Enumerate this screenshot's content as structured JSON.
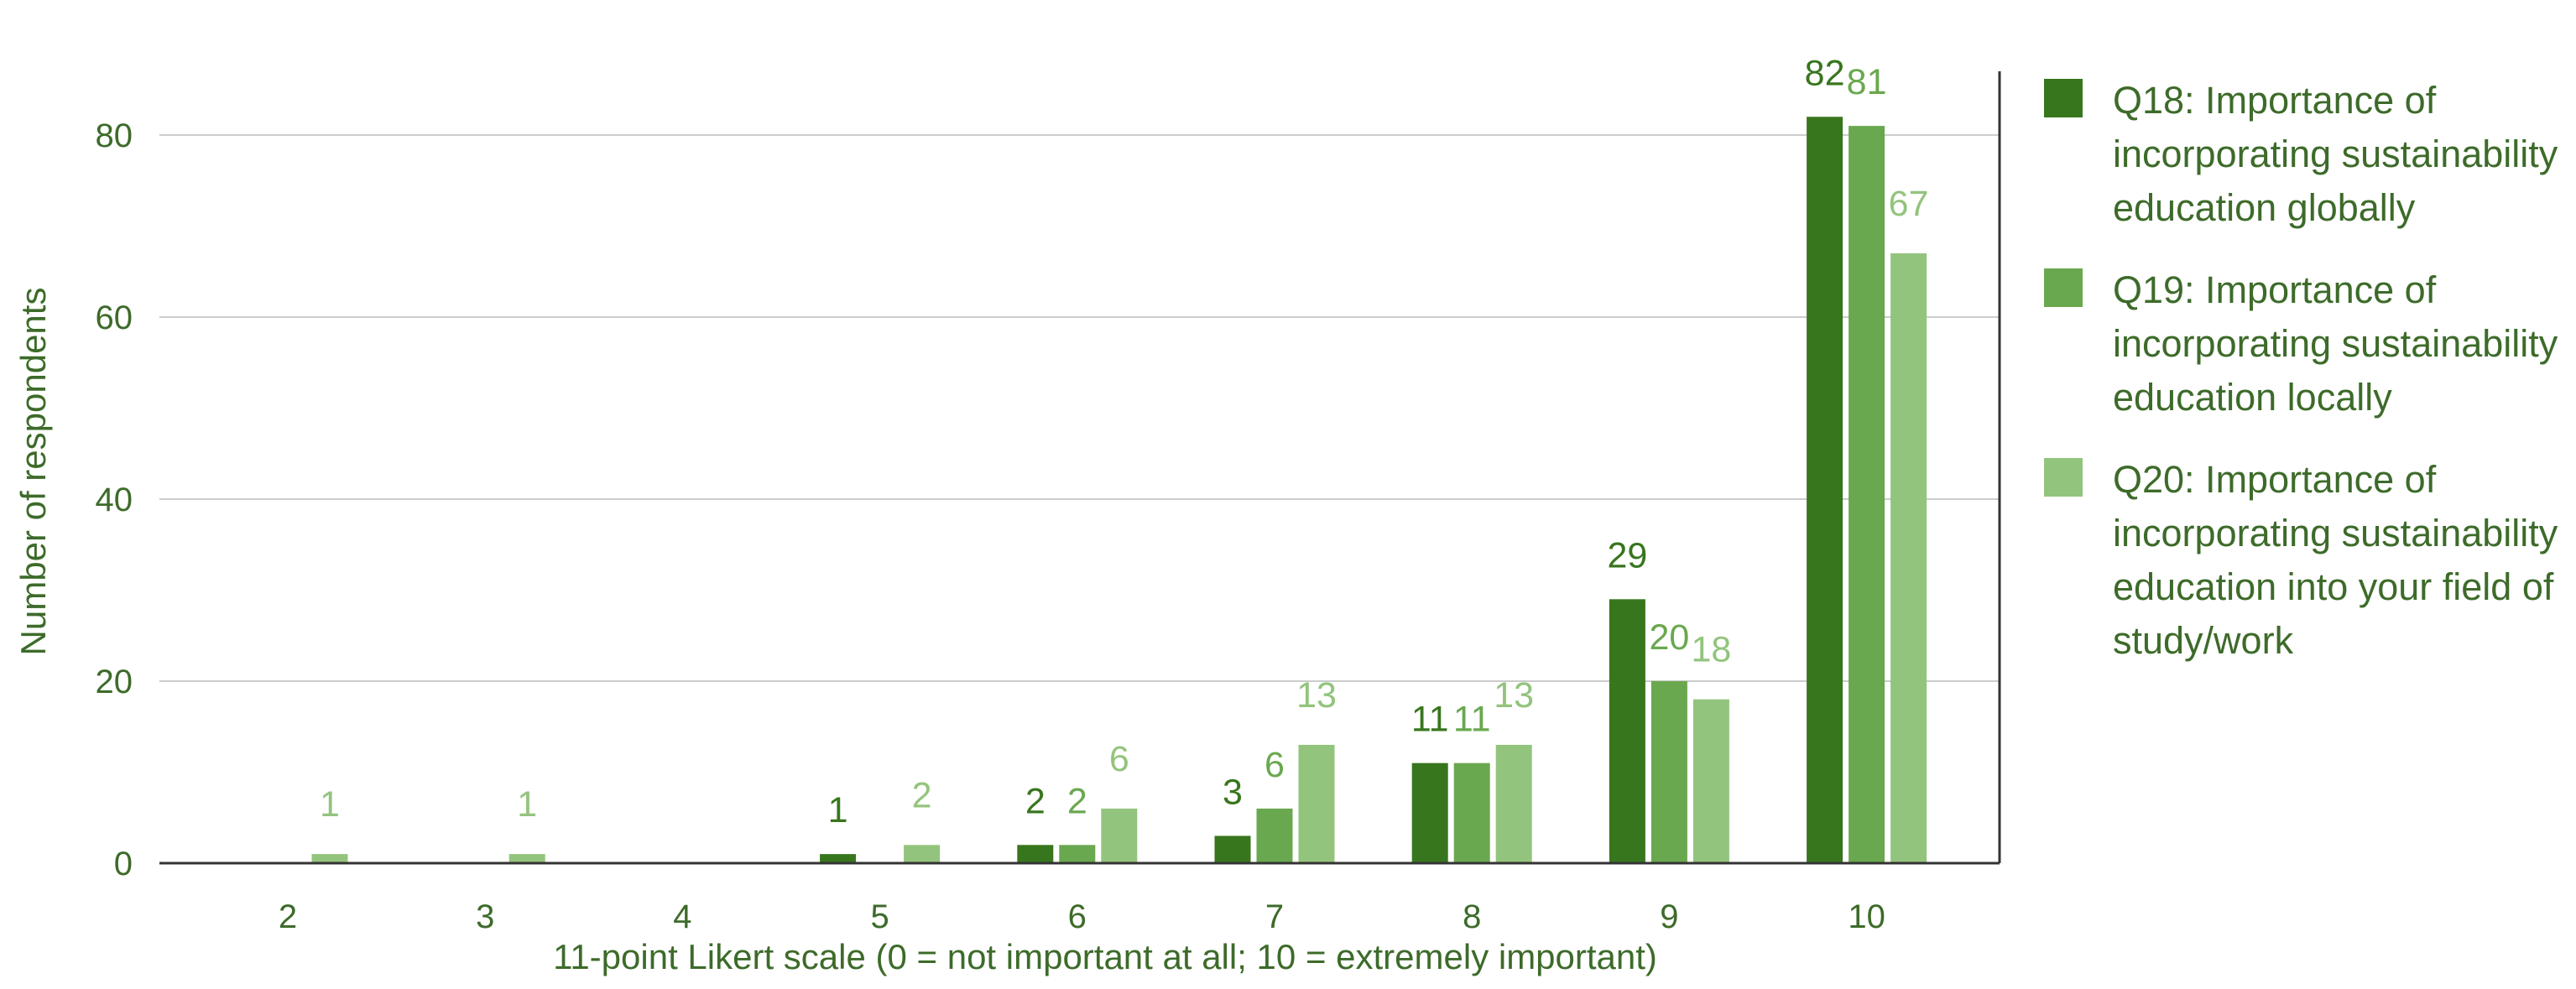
{
  "chart_data": {
    "type": "bar",
    "categories": [
      "2",
      "3",
      "4",
      "5",
      "6",
      "7",
      "8",
      "9",
      "10"
    ],
    "series": [
      {
        "name": "Q18: Importance of incorporating sustainability education globally",
        "color": "#38761d",
        "values": [
          0,
          0,
          0,
          1,
          2,
          3,
          11,
          29,
          82
        ],
        "labels": [
          "",
          "",
          "",
          "1",
          "2",
          "3",
          "11",
          "29",
          "82"
        ]
      },
      {
        "name": "Q19: Importance of incorporating sustainability education locally",
        "color": "#6aa84f",
        "values": [
          0,
          0,
          0,
          0,
          2,
          6,
          11,
          20,
          81
        ],
        "labels": [
          "",
          "",
          "",
          "",
          "2",
          "6",
          "11",
          "20",
          "81"
        ]
      },
      {
        "name": "Q20: Importance of incorporating sustainability education into your field of study/work",
        "color": "#93c47d",
        "values": [
          1,
          1,
          0,
          2,
          6,
          13,
          13,
          18,
          67
        ],
        "labels": [
          "1",
          "1",
          "",
          "2",
          "6",
          "13",
          "13",
          "18",
          "67"
        ]
      }
    ],
    "xlabel": "11-point Likert scale (0 = not important at all; 10 = extremely important)",
    "ylabel": "Number of respondents",
    "ylim": [
      0,
      87
    ],
    "yticks": [
      "0",
      "20",
      "40",
      "60",
      "80"
    ],
    "grid": true,
    "legend_position": "right"
  }
}
